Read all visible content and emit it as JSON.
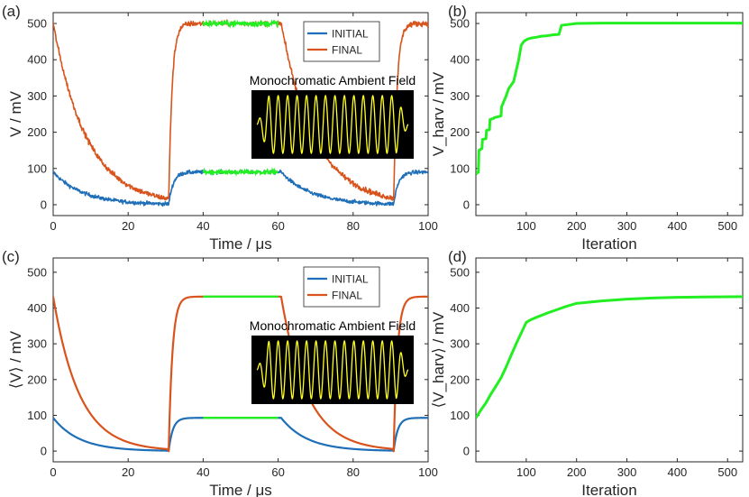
{
  "colors": {
    "initial": "#1f6fb8",
    "final": "#d9541c",
    "highlight": "#22ee22",
    "inset_bg": "#000000",
    "inset_wave": "#ffff22",
    "axis": "#262626"
  },
  "chart_data": [
    {
      "id": "a",
      "panel_label": "(a)",
      "type": "line",
      "xlabel": "Time / μs",
      "ylabel": "V / mV",
      "xlim": [
        0,
        100
      ],
      "ylim": [
        -30,
        530
      ],
      "xticks": [
        "0",
        "20",
        "40",
        "60",
        "80",
        "100"
      ],
      "yticks": [
        "0",
        "100",
        "200",
        "300",
        "400",
        "500"
      ],
      "legend": {
        "location": "top-right",
        "entries": [
          "INITIAL",
          "FINAL"
        ]
      },
      "inset_title": "Monochromatic Ambient Field",
      "noisy": true,
      "series": [
        {
          "name": "INITIAL",
          "color_key": "initial",
          "high": 90,
          "low": 0,
          "tau_decay": 8,
          "tau_rise": 1.2,
          "cycle_start": 30.8,
          "half_period": 30,
          "highlight_range": [
            40,
            60
          ]
        },
        {
          "name": "FINAL",
          "color_key": "final",
          "high": 500,
          "low": 0,
          "tau_decay": 9,
          "tau_rise": 0.9,
          "cycle_start": 30.8,
          "half_period": 30,
          "highlight_range": [
            40,
            60
          ]
        }
      ]
    },
    {
      "id": "b",
      "panel_label": "(b)",
      "type": "line",
      "xlabel": "Iteration",
      "ylabel": "V_harv / mV",
      "xlim": [
        0,
        530
      ],
      "ylim": [
        -30,
        530
      ],
      "xticks": [
        "100",
        "200",
        "300",
        "400",
        "500"
      ],
      "yticks": [
        "0",
        "100",
        "200",
        "300",
        "400",
        "500"
      ],
      "series": [
        {
          "name": "V_harv",
          "color_key": "highlight",
          "x": [
            0,
            5,
            6,
            12,
            13,
            20,
            21,
            27,
            28,
            35,
            36,
            50,
            51,
            60,
            65,
            70,
            75,
            80,
            85,
            90,
            95,
            100,
            105,
            110,
            120,
            130,
            140,
            150,
            155,
            165,
            170,
            200,
            250,
            300,
            400,
            530
          ],
          "y": [
            85,
            90,
            150,
            155,
            180,
            182,
            205,
            207,
            235,
            238,
            240,
            245,
            270,
            300,
            320,
            330,
            340,
            370,
            400,
            440,
            450,
            455,
            458,
            460,
            462,
            465,
            466,
            468,
            469,
            470,
            495,
            500,
            501,
            501,
            501,
            501
          ]
        }
      ]
    },
    {
      "id": "c",
      "panel_label": "(c)",
      "type": "line",
      "xlabel": "Time / μs",
      "ylabel": "⟨V⟩ / mV",
      "xlim": [
        0,
        100
      ],
      "ylim": [
        -30,
        540
      ],
      "xticks": [
        "0",
        "20",
        "40",
        "60",
        "80",
        "100"
      ],
      "yticks": [
        "0",
        "100",
        "200",
        "300",
        "400",
        "500"
      ],
      "legend": {
        "location": "top-right",
        "entries": [
          "INITIAL",
          "FINAL"
        ]
      },
      "inset_title": "Monochromatic Ambient Field",
      "noisy": false,
      "series": [
        {
          "name": "INITIAL",
          "color_key": "initial",
          "high": 93,
          "low": 0,
          "tau_decay": 7,
          "tau_rise": 1.1,
          "cycle_start": 30.8,
          "half_period": 30,
          "highlight_range": [
            40,
            60
          ]
        },
        {
          "name": "FINAL",
          "color_key": "final",
          "high": 432,
          "low": 0,
          "tau_decay": 7,
          "tau_rise": 1.0,
          "cycle_start": 30.8,
          "half_period": 30,
          "highlight_range": [
            40,
            60
          ]
        }
      ]
    },
    {
      "id": "d",
      "panel_label": "(d)",
      "type": "line",
      "xlabel": "Iteration",
      "ylabel": "⟨V_harv⟩ / mV",
      "xlim": [
        0,
        530
      ],
      "ylim": [
        -30,
        540
      ],
      "xticks": [
        "100",
        "200",
        "300",
        "400",
        "500"
      ],
      "yticks": [
        "0",
        "100",
        "200",
        "300",
        "400",
        "500"
      ],
      "series": [
        {
          "name": "V_harv",
          "color_key": "highlight",
          "x": [
            0,
            10,
            20,
            30,
            40,
            50,
            60,
            70,
            80,
            90,
            100,
            110,
            120,
            140,
            160,
            180,
            200,
            250,
            300,
            350,
            400,
            450,
            530
          ],
          "y": [
            93,
            115,
            135,
            160,
            182,
            205,
            235,
            268,
            300,
            330,
            360,
            368,
            374,
            385,
            395,
            405,
            413,
            420,
            425,
            428,
            430,
            431,
            432
          ]
        }
      ]
    }
  ]
}
